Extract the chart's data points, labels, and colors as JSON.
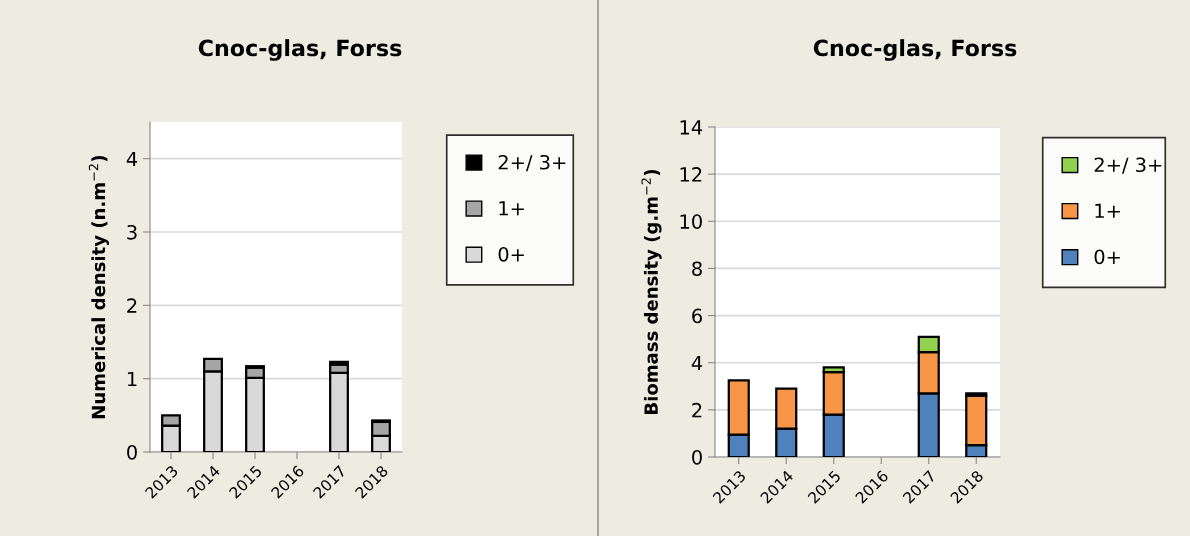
{
  "chart_data": [
    {
      "type": "bar",
      "title": "Cnoc-glas, Forss",
      "ylabel": "Numerical density (n.m$^{−2}$)",
      "categories": [
        "2013",
        "2014",
        "2015",
        "2016",
        "2017",
        "2018"
      ],
      "stacked": true,
      "ylim": [
        0,
        4.5
      ],
      "yticks": [
        0,
        1,
        2,
        3,
        4
      ],
      "grid": "y",
      "legend": "right",
      "series": [
        {
          "name": "0+",
          "color": "#d9d9d9",
          "values": [
            0.36,
            1.1,
            1.01,
            null,
            1.08,
            0.22
          ]
        },
        {
          "name": "1+",
          "color": "#a6a6a6",
          "values": [
            0.14,
            0.17,
            0.14,
            null,
            0.11,
            0.19
          ]
        },
        {
          "name": "2+/ 3+",
          "color": "#000000",
          "values": [
            null,
            null,
            0.02,
            null,
            0.04,
            0.02
          ]
        }
      ]
    },
    {
      "type": "bar",
      "title": "Cnoc-glas, Forss",
      "ylabel": "Biomass density (g.m$^{−2}$)",
      "categories": [
        "2013",
        "2014",
        "2015",
        "2016",
        "2017",
        "2018"
      ],
      "stacked": true,
      "ylim": [
        0,
        14
      ],
      "yticks": [
        0,
        2,
        4,
        6,
        8,
        10,
        12,
        14
      ],
      "grid": "y",
      "legend": "right",
      "series": [
        {
          "name": "0+",
          "color": "#4f81bd",
          "values": [
            0.95,
            1.2,
            1.8,
            null,
            2.7,
            0.5
          ]
        },
        {
          "name": "1+",
          "color": "#f79646",
          "values": [
            2.3,
            1.7,
            1.8,
            null,
            1.75,
            2.1
          ]
        },
        {
          "name": "2+/ 3+",
          "color": "#92d050",
          "values": [
            null,
            null,
            0.2,
            null,
            0.65,
            0.1
          ]
        }
      ]
    }
  ]
}
